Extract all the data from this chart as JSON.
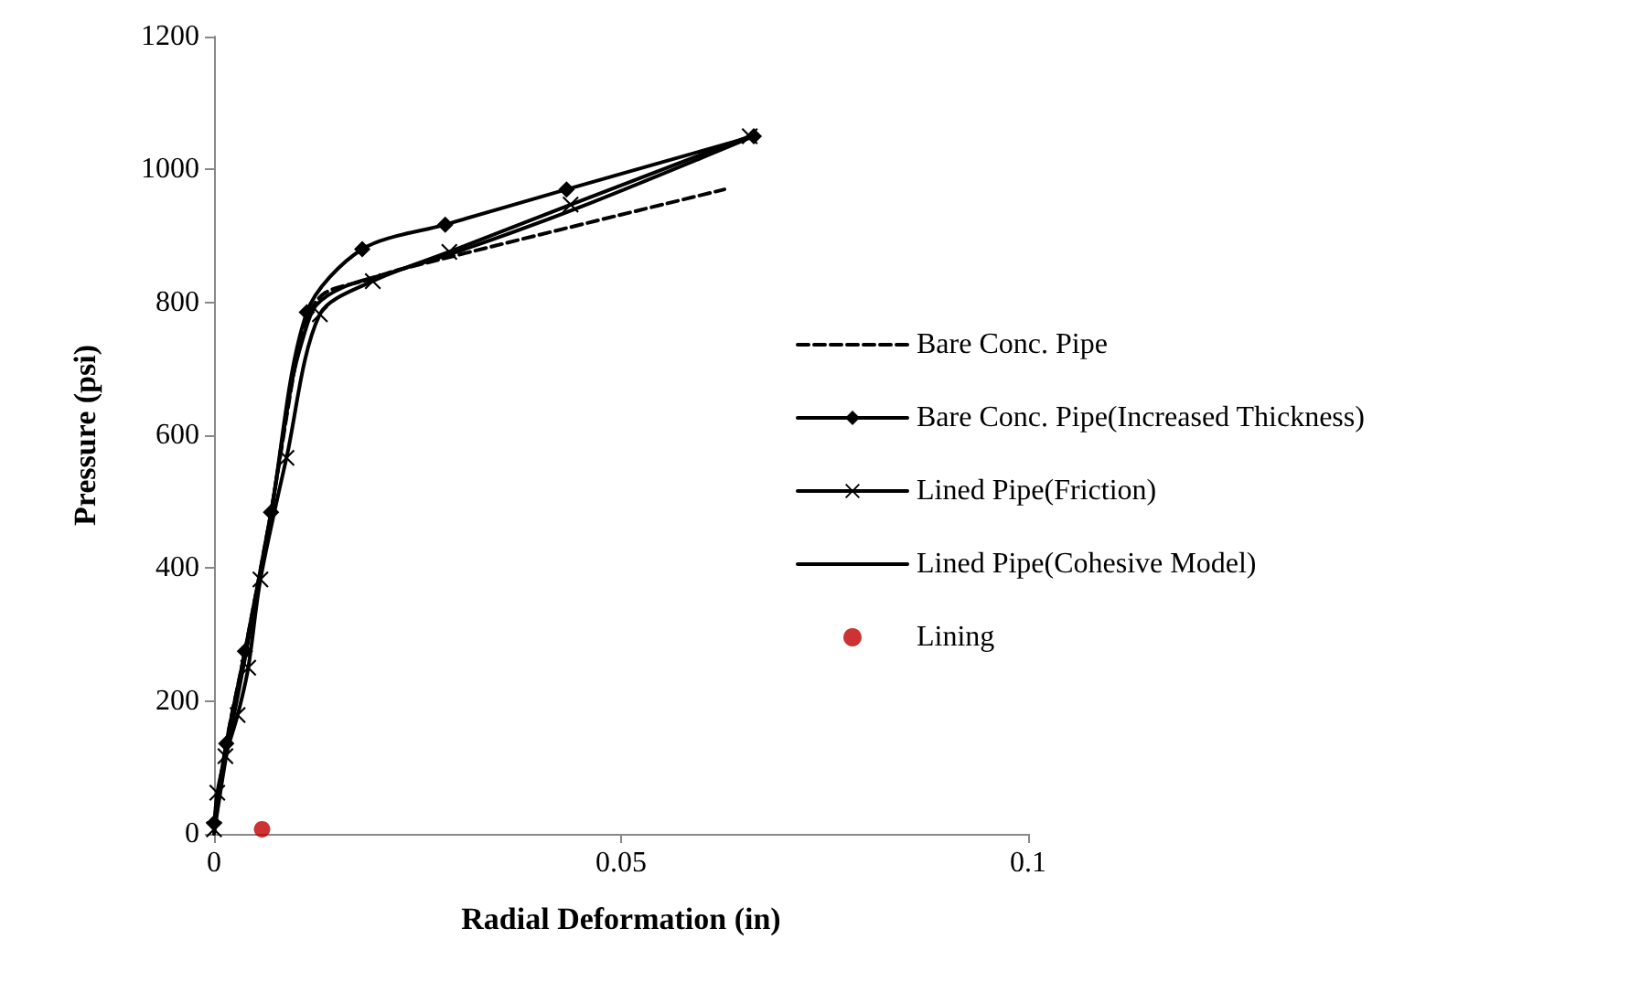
{
  "chart_data": {
    "type": "line",
    "xlabel": "Radial Deformation (in)",
    "ylabel": "Pressure (psi)",
    "xlim": [
      0,
      0.1
    ],
    "xticks": [
      0,
      0.05,
      0.1
    ],
    "ylim": [
      0,
      1200
    ],
    "yticks": [
      0,
      200,
      400,
      600,
      800,
      1000,
      1200
    ],
    "grid": false,
    "legend": "right",
    "series": [
      {
        "name": "Bare Conc. Pipe",
        "color": "#000000",
        "line_style": "dashed",
        "marker": "none",
        "x": [
          0,
          0.0015,
          0.0038,
          0.007,
          0.0102,
          0.0114,
          0.0136,
          0.0189,
          0.0227,
          0.0627
        ],
        "values": [
          7,
          136,
          275,
          484,
          722,
          777,
          814,
          834,
          849,
          970
        ]
      },
      {
        "name": "Bare Conc. Pipe(Increased Thickness)",
        "color": "#000000",
        "line_style": "solid",
        "marker": "diamond",
        "x": [
          0,
          0.0015,
          0.0038,
          0.007,
          0.0114,
          0.0182,
          0.0284,
          0.0433,
          0.0663
        ],
        "values": [
          16,
          136,
          275,
          484,
          785,
          880,
          917,
          970,
          1050
        ]
      },
      {
        "name": "Lined Pipe(Friction)",
        "color": "#000000",
        "line_style": "solid",
        "marker": "cross",
        "x": [
          0,
          0.0004,
          0.0014,
          0.0029,
          0.0042,
          0.0057,
          0.0089,
          0.013,
          0.0195,
          0.0289,
          0.0438,
          0.0658
        ],
        "values": [
          7,
          62,
          117,
          179,
          250,
          383,
          566,
          782,
          832,
          876,
          947,
          1050
        ]
      },
      {
        "name": "Lined Pipe(Cohesive Model)",
        "color": "#000000",
        "line_style": "solid",
        "marker": "none",
        "x": [
          0,
          0.0015,
          0.0038,
          0.0068,
          0.0095,
          0.011,
          0.0125,
          0.0159,
          0.0212,
          0.0303,
          0.0447,
          0.0663
        ],
        "values": [
          0,
          117,
          264,
          466,
          676,
          749,
          795,
          823,
          843,
          878,
          942,
          1050
        ]
      },
      {
        "name": "Lining",
        "type": "scatter",
        "color": "#c00000",
        "marker": "circle",
        "x": [
          0.0059
        ],
        "values": [
          7
        ]
      }
    ]
  }
}
